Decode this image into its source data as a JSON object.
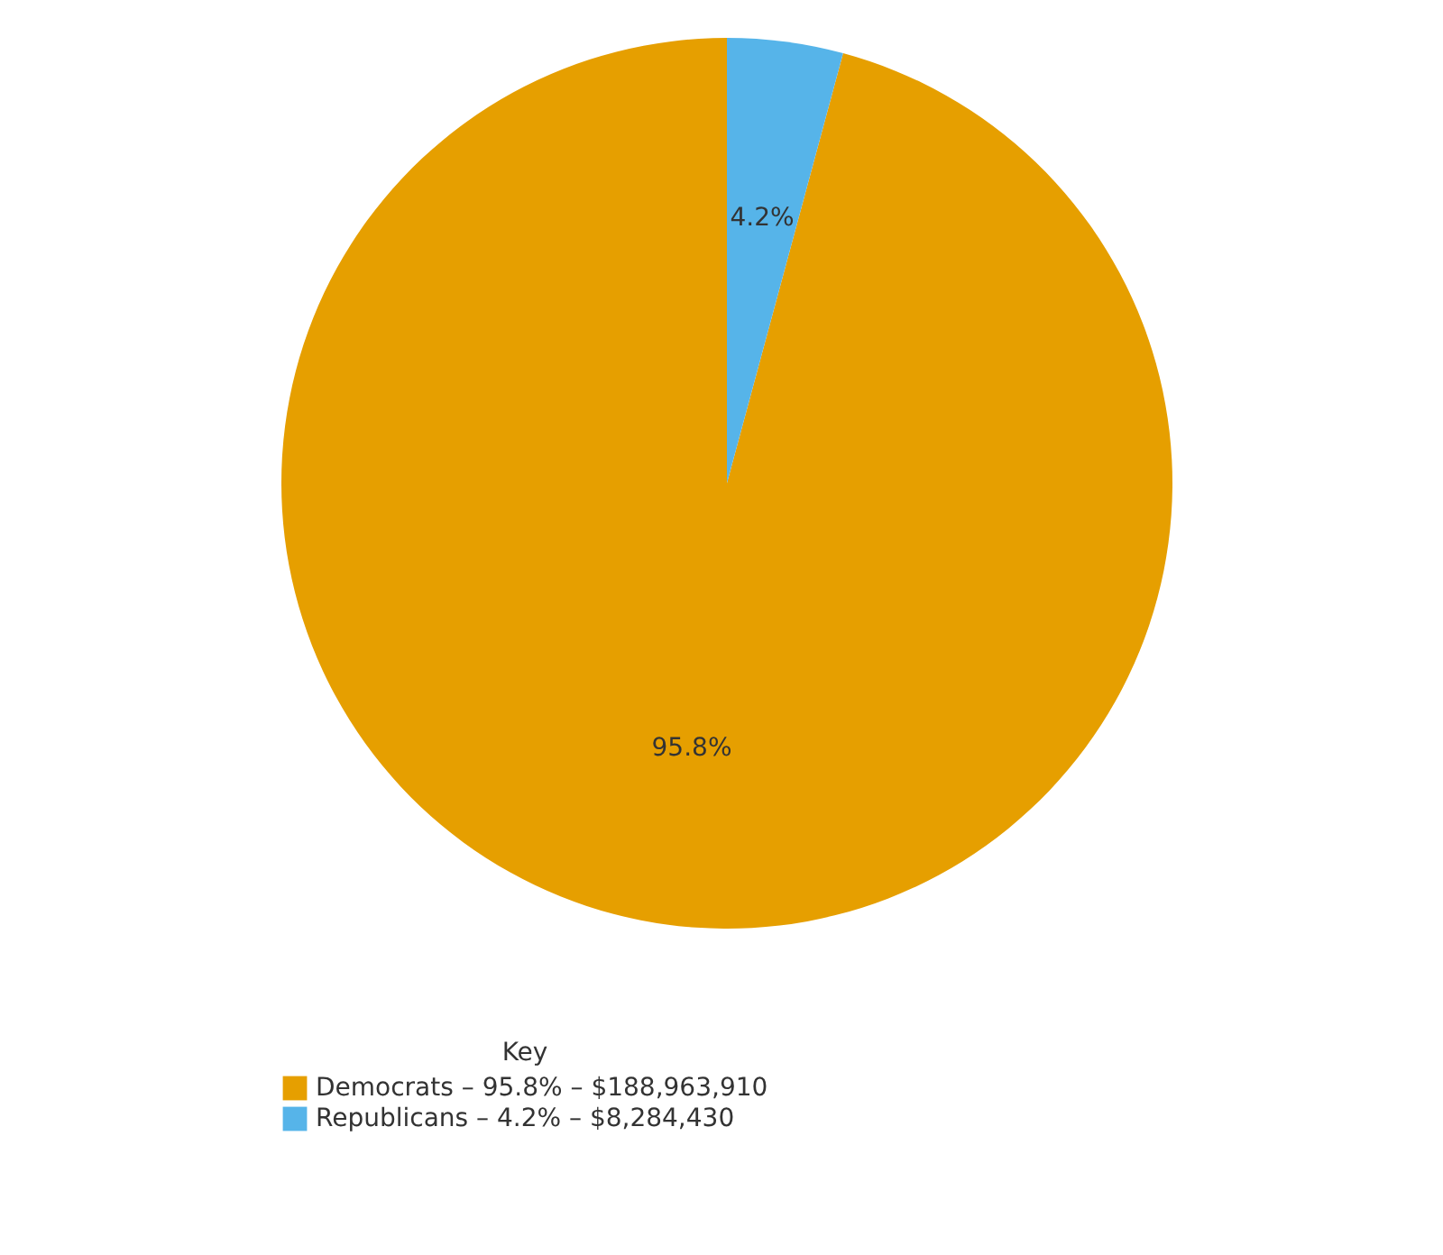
{
  "chart_data": {
    "type": "pie",
    "legend_title": "Key",
    "legend": "bottom",
    "categories": [
      "Democrats – 95.8% – $188,963,910",
      "Republicans – 4.2% – $8,284,430"
    ],
    "values": [
      95.8,
      4.2
    ],
    "colors": [
      "#e69f00",
      "#56b4e9"
    ],
    "value_labels": [
      "95.8%",
      "4.2%"
    ]
  }
}
